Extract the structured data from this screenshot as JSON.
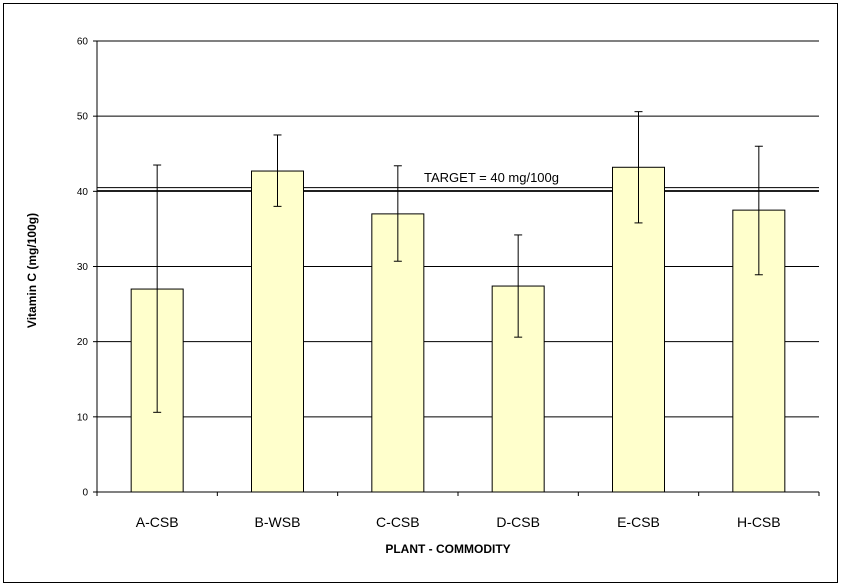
{
  "chart_data": {
    "type": "bar",
    "categories": [
      "A-CSB",
      "B-WSB",
      "C-CSB",
      "D-CSB",
      "E-CSB",
      "H-CSB"
    ],
    "values": [
      27,
      42.7,
      37,
      27.4,
      43.2,
      37.5
    ],
    "error_low": [
      10.6,
      38,
      30.7,
      20.6,
      35.8,
      28.9
    ],
    "error_high": [
      43.5,
      47.5,
      43.4,
      34.2,
      50.6,
      46
    ],
    "xlabel": "PLANT - COMMODITY",
    "ylabel": "Vitamin C (mg/100g)",
    "ylim": [
      0,
      60
    ],
    "yticks": [
      0,
      10,
      20,
      30,
      40,
      50,
      60
    ],
    "grid": true,
    "target": {
      "value": 40.3,
      "label": "TARGET = 40 mg/100g"
    },
    "colors": {
      "bar_fill": "#ffffcc",
      "bar_stroke": "#000000",
      "grid": "#000000"
    }
  }
}
